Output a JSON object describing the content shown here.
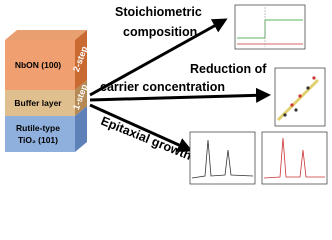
{
  "stack": {
    "top_layer": "NbON (100)",
    "middle_layer": "Buffer layer",
    "bottom_layer_line1": "Rutile-type",
    "bottom_layer_line2": "TiO₂ (101)",
    "step_top": "2-step",
    "step_middle": "1-step"
  },
  "outcomes": {
    "first_line1": "Stoichiometric",
    "first_line2": "composition",
    "second_line1": "Reduction of",
    "second_line2": "carrier concentration",
    "third": "Epitaxial growth"
  }
}
